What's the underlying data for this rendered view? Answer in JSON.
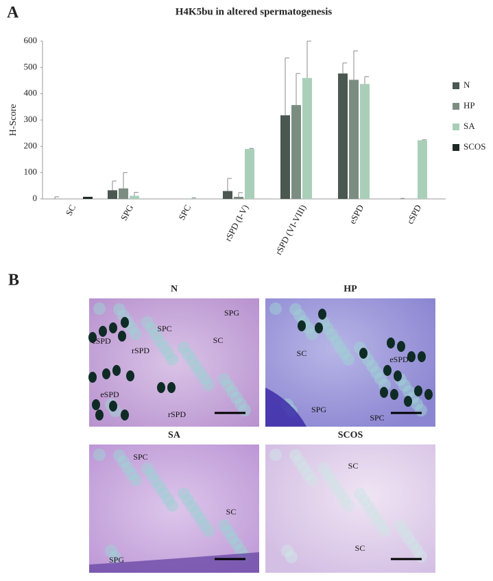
{
  "panel_a_label": "A",
  "chart_data": {
    "type": "bar",
    "title": "H4K5bu in altered spermatogenesis",
    "y_label": "H-Score",
    "categories": [
      "SC",
      "SPG",
      "SPC",
      "rSPD (I-V)",
      "rSPD (VI-VIII)",
      "eSPD",
      "cSPD"
    ],
    "series": [
      {
        "name": "N",
        "color": "#4b5751",
        "values": [
          0,
          33,
          0,
          30,
          318,
          477,
          0
        ],
        "errors": [
          8,
          35,
          0,
          48,
          218,
          40,
          2
        ]
      },
      {
        "name": "HP",
        "color": "#7b8d81",
        "values": [
          0,
          40,
          0,
          8,
          357,
          453,
          0
        ],
        "errors": [
          0,
          60,
          0,
          16,
          120,
          110,
          0
        ]
      },
      {
        "name": "SA",
        "color": "#a9cfb9",
        "values": [
          0,
          12,
          2,
          190,
          460,
          437,
          223
        ],
        "errors": [
          0,
          13,
          2,
          2,
          140,
          28,
          2
        ]
      },
      {
        "name": "SCOS",
        "color": "#1e2925",
        "values": [
          8,
          0,
          0,
          0,
          0,
          0,
          0
        ]
      }
    ],
    "ylim": [
      0,
      600
    ],
    "yticks": [
      0,
      100,
      200,
      300,
      400,
      500,
      600
    ],
    "legend": "right"
  },
  "panel_b": {
    "label": "B",
    "images": [
      {
        "title": "N",
        "labels": [
          "eSPD",
          "SPC",
          "SPG",
          "rSPD",
          "SC",
          "eSPD",
          "rSPD"
        ]
      },
      {
        "title": "HP",
        "labels": [
          "SC",
          "eSPD",
          "SPG",
          "SPC"
        ]
      },
      {
        "title": "SA",
        "labels": [
          "SPC",
          "SC",
          "SPG"
        ]
      },
      {
        "title": "SCOS",
        "labels": [
          "SC",
          "SC"
        ]
      }
    ]
  }
}
